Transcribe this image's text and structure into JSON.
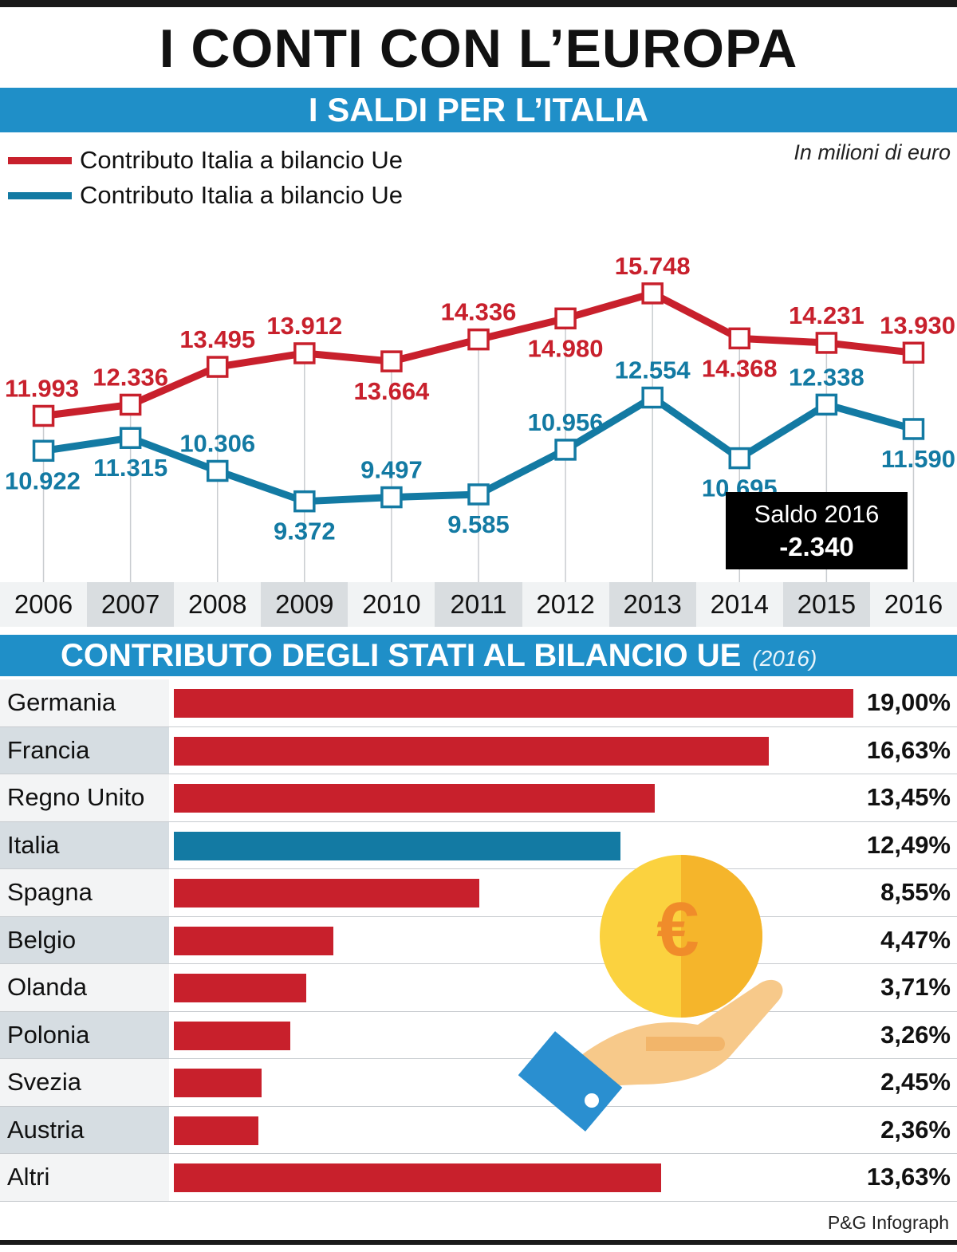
{
  "title": "I CONTI CON L’EUROPA",
  "section1": {
    "title": "I SALDI PER L’ITALIA",
    "unit_note": "In milioni di euro",
    "saldo_box": {
      "label": "Saldo 2016",
      "value": "-2.340"
    }
  },
  "section2": {
    "title": "CONTRIBUTO DEGLI STATI AL BILANCIO UE",
    "year": "(2016)"
  },
  "credit": "P&G Infograph",
  "colors": {
    "red": "#c8202c",
    "blue": "#137aa3",
    "band": "#1f8fc8"
  },
  "icons": {
    "illustration": "euro-coin-hand-icon"
  },
  "chart_data": [
    {
      "type": "line",
      "x": [
        "2006",
        "2007",
        "2008",
        "2009",
        "2010",
        "2011",
        "2012",
        "2013",
        "2014",
        "2015",
        "2016"
      ],
      "series": [
        {
          "name": "Contributo Italia a bilancio Ue",
          "color": "#c8202c",
          "values": [
            11993,
            12336,
            13495,
            13912,
            13664,
            14336,
            14980,
            15748,
            14368,
            14231,
            13930
          ],
          "labels": [
            "11.993",
            "12.336",
            "13.495",
            "13.912",
            "13.664",
            "14.336",
            "14.980",
            "15.748",
            "14.368",
            "14.231",
            "13.930"
          ]
        },
        {
          "name": "Contributo Italia a bilancio Ue",
          "color": "#137aa3",
          "values": [
            10922,
            11315,
            10306,
            9372,
            9497,
            9585,
            10956,
            12554,
            10695,
            12338,
            11590
          ],
          "labels": [
            "10.922",
            "11.315",
            "10.306",
            "9.372",
            "9.497",
            "9.585",
            "10.956",
            "12.554",
            "10.695",
            "12.338",
            "11.590"
          ]
        }
      ],
      "ylim": [
        8500,
        16500
      ]
    },
    {
      "type": "bar",
      "categories": [
        "Germania",
        "Francia",
        "Regno Unito",
        "Italia",
        "Spagna",
        "Belgio",
        "Olanda",
        "Polonia",
        "Svezia",
        "Austria",
        "Altri"
      ],
      "values": [
        19.0,
        16.63,
        13.45,
        12.49,
        8.55,
        4.47,
        3.71,
        3.26,
        2.45,
        2.36,
        13.63
      ],
      "labels": [
        "19,00%",
        "16,63%",
        "13,45%",
        "12,49%",
        "8,55%",
        "4,47%",
        "3,71%",
        "3,26%",
        "2,45%",
        "2,36%",
        "13,63%"
      ],
      "highlight": "Italia",
      "xlim": [
        0,
        19
      ]
    }
  ]
}
